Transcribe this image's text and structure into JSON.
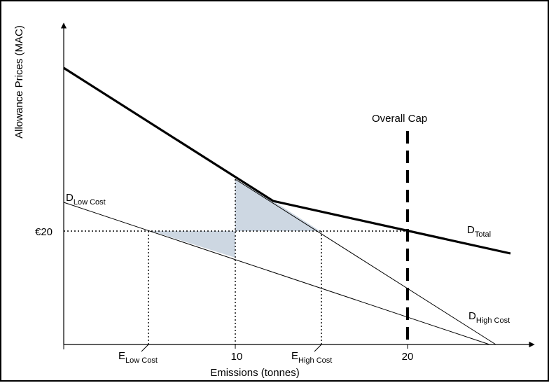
{
  "axes": {
    "y_title": "Allowance Prices (MAC)",
    "x_title": "Emissions (tonnes)"
  },
  "ticks": {
    "price": "€20",
    "x_10": "10",
    "x_20": "20"
  },
  "labels": {
    "cap": "Overall Cap",
    "d_symbol": "D",
    "e_symbol": "E",
    "total_sub": "Total",
    "low_cost_sub": "Low Cost",
    "high_cost_sub": "High Cost"
  },
  "colors": {
    "ink": "#000000",
    "shade": "#cdd7e2",
    "background": "#ffffff"
  }
}
